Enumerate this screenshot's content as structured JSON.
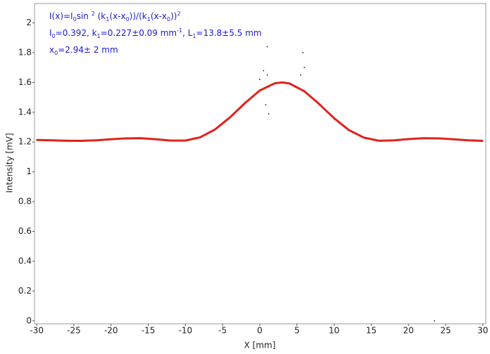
{
  "chart_data": {
    "type": "scatter",
    "annotations": [
      [
        {
          "t": "I(x)=I"
        },
        {
          "sub": "0"
        },
        {
          "t": "sin "
        },
        {
          "sup": "2"
        },
        {
          "t": " (k"
        },
        {
          "sub": "1"
        },
        {
          "t": "(x-x"
        },
        {
          "sub": "0"
        },
        {
          "t": "))/(k"
        },
        {
          "sub": "1"
        },
        {
          "t": "(x-x"
        },
        {
          "sub": "0"
        },
        {
          "t": "))"
        },
        {
          "sup": "2"
        }
      ],
      [
        {
          "t": "I"
        },
        {
          "sub": "0"
        },
        {
          "t": "=0.392,  k"
        },
        {
          "sub": "1"
        },
        {
          "t": "=0.227±0.09 mm"
        },
        {
          "sup": "-1"
        },
        {
          "t": ",   L"
        },
        {
          "sub": "1"
        },
        {
          "t": "=13.8±5.5 mm"
        }
      ],
      [
        {
          "t": "x"
        },
        {
          "sub": "0"
        },
        {
          "t": "=2.94±  2 mm"
        }
      ]
    ],
    "xlabel": "X [mm]",
    "ylabel": "Intensity [mV]",
    "xlim": [
      -30.3,
      30.4
    ],
    "ylim": [
      -0.02,
      2.13
    ],
    "xticks": [
      -30,
      -25,
      -20,
      -15,
      -10,
      -5,
      0,
      5,
      10,
      15,
      20,
      25,
      30
    ],
    "yticks": [
      0,
      0.2,
      0.4,
      0.6,
      0.8,
      1,
      1.2,
      1.4,
      1.6,
      1.8,
      2
    ],
    "series": [
      {
        "mode": "markers",
        "color": "#2e5a1c",
        "x": [
          -30,
          -28,
          -26,
          -24,
          -22,
          -20,
          -18,
          -16,
          -14,
          -12,
          -10,
          -8,
          -6,
          -4,
          -2,
          -1,
          0,
          0.5,
          0.8,
          1,
          1,
          1.2,
          2,
          4,
          5.5,
          5.8,
          6,
          6.5,
          8,
          10,
          12,
          14,
          16,
          18,
          20,
          22,
          23.5,
          24,
          26,
          28,
          30
        ],
        "values": [
          1.215,
          1.212,
          1.21,
          1.209,
          1.212,
          1.22,
          1.226,
          1.227,
          1.22,
          1.211,
          1.211,
          1.233,
          1.287,
          1.368,
          1.463,
          1.5,
          1.62,
          1.68,
          1.45,
          1.65,
          1.84,
          1.39,
          1.595,
          1.592,
          1.65,
          1.8,
          1.7,
          1.52,
          1.45,
          1.355,
          1.278,
          1.23,
          1.21,
          1.212,
          1.221,
          1.227,
          0.0,
          1.226,
          1.22,
          1.213,
          1.207
        ]
      },
      {
        "mode": "lines",
        "color": "#e3201b",
        "x": [
          -30,
          -28,
          -26,
          -24,
          -22,
          -20,
          -18,
          -16,
          -14,
          -12,
          -10,
          -8,
          -6,
          -4,
          -2,
          0,
          2,
          3,
          4,
          6,
          8,
          10,
          12,
          14,
          16,
          18,
          20,
          22,
          24,
          26,
          28,
          30
        ],
        "values": [
          1.214,
          1.212,
          1.209,
          1.208,
          1.212,
          1.219,
          1.225,
          1.226,
          1.219,
          1.21,
          1.21,
          1.232,
          1.285,
          1.366,
          1.461,
          1.546,
          1.594,
          1.6,
          1.593,
          1.541,
          1.455,
          1.36,
          1.28,
          1.23,
          1.209,
          1.211,
          1.22,
          1.226,
          1.225,
          1.219,
          1.212,
          1.208
        ]
      }
    ]
  }
}
